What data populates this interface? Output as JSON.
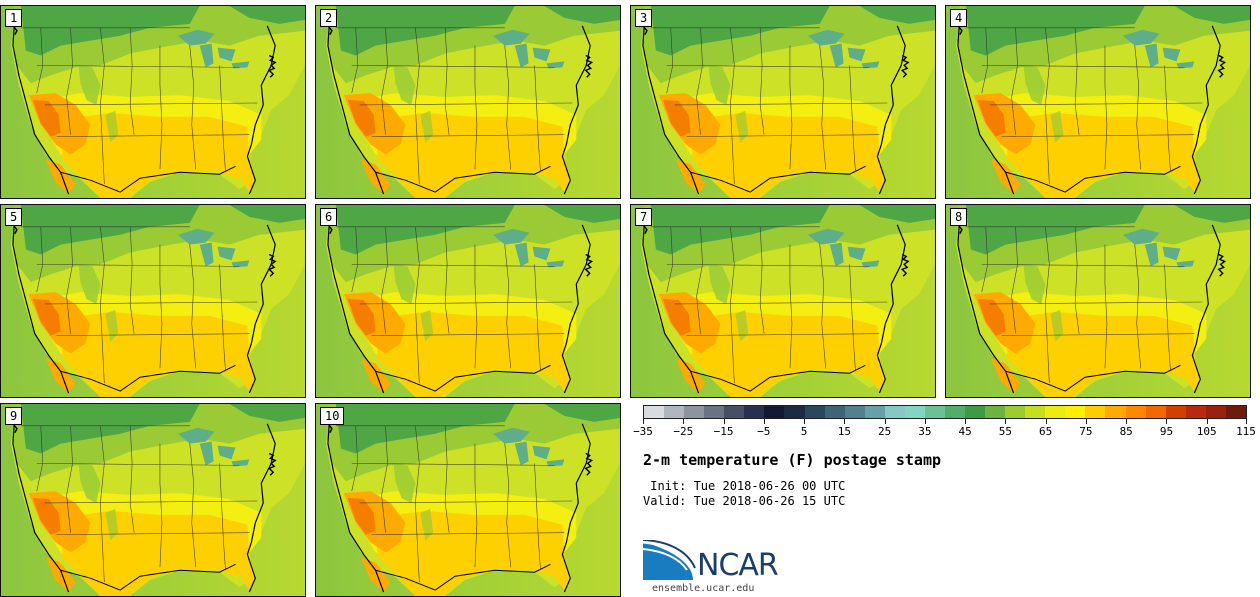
{
  "panels": [
    {
      "label": "1"
    },
    {
      "label": "2"
    },
    {
      "label": "3"
    },
    {
      "label": "4"
    },
    {
      "label": "5"
    },
    {
      "label": "6"
    },
    {
      "label": "7"
    },
    {
      "label": "8"
    },
    {
      "label": "9"
    },
    {
      "label": "10"
    }
  ],
  "colorbar": {
    "colors": [
      "#d8dce0",
      "#b0b6be",
      "#8c94a0",
      "#6a7385",
      "#474f68",
      "#283050",
      "#101a35",
      "#1b2b45",
      "#2b4760",
      "#3f6378",
      "#52808f",
      "#66a0a8",
      "#86c8c5",
      "#84d4c2",
      "#6cc096",
      "#52ac6a",
      "#3e9a45",
      "#6db33f",
      "#9ccc32",
      "#c5de1e",
      "#ecec10",
      "#ffef00",
      "#ffcc00",
      "#ffaa00",
      "#ff8800",
      "#f06a00",
      "#d24000",
      "#b82a10",
      "#9a2010",
      "#6e1a0e"
    ],
    "tick_labels": [
      "−35",
      "−25",
      "−15",
      "−5",
      "5",
      "15",
      "25",
      "35",
      "45",
      "55",
      "65",
      "75",
      "85",
      "95",
      "105",
      "115"
    ]
  },
  "title": "2-m temperature (F) postage stamp",
  "init": " Init: Tue 2018-06-26 00 UTC",
  "valid": "Valid: Tue 2018-06-26 15 UTC",
  "logo": {
    "text": "NCAR",
    "url": "ensemble.ucar.edu",
    "colors": {
      "blue": "#1a3e6e",
      "light": "#2a8fc8"
    }
  },
  "map_colors": {
    "ocean_west": "#8cc63f",
    "ocean_east": "#b7d930",
    "north_green": "#4fa644",
    "mid_green": "#9acb34",
    "yellow_green": "#cde226",
    "yellow": "#f4ef10",
    "warm": "#ffd000",
    "orange": "#ffaa00",
    "hot": "#f57d00",
    "lakes": "#5fae8a",
    "border": "#000000"
  }
}
